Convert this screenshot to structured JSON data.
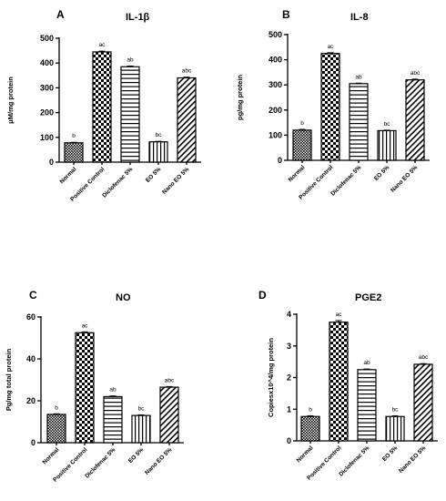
{
  "chart_data": [
    {
      "type": "bar",
      "panel": "A",
      "title": "IL-1β",
      "ylabel": "μM/mg protein",
      "xlabel": "",
      "ylim": [
        0,
        500
      ],
      "yticks": [
        0,
        100,
        200,
        300,
        400,
        500
      ],
      "categories": [
        "Normal",
        "Positive Control",
        "Diclofenac 5%",
        "EO 5%",
        "Nano EO 5%"
      ],
      "values": [
        78,
        445,
        385,
        82,
        340
      ],
      "errors": [
        2,
        3,
        3,
        2,
        3
      ],
      "labels": [
        "b",
        "ac",
        "ab",
        "bc",
        "abc"
      ],
      "patterns": [
        "dots",
        "checker",
        "hlines",
        "vlines",
        "diag"
      ]
    },
    {
      "type": "bar",
      "panel": "B",
      "title": "IL-8",
      "ylabel": "pg/mg protein",
      "xlabel": "",
      "ylim": [
        0,
        500
      ],
      "yticks": [
        0,
        100,
        200,
        300,
        400,
        500
      ],
      "categories": [
        "Normal",
        "Positive Control",
        "Diclofenac 5%",
        "EO 5%",
        "Nano EO 5%"
      ],
      "values": [
        120,
        425,
        305,
        118,
        320
      ],
      "errors": [
        3,
        3,
        2,
        2,
        3
      ],
      "labels": [
        "b",
        "ac",
        "ab",
        "bc",
        "abc"
      ],
      "patterns": [
        "dots",
        "checker",
        "hlines",
        "vlines",
        "diag"
      ]
    },
    {
      "type": "bar",
      "panel": "C",
      "title": "NO",
      "ylabel": "Pg/mg total protein",
      "xlabel": "",
      "ylim": [
        0,
        60
      ],
      "yticks": [
        0,
        20,
        40,
        60
      ],
      "categories": [
        "Normal",
        "Positive Control",
        "Diclofenac 5%",
        "EO 5%",
        "Nano EO 5%"
      ],
      "values": [
        13.5,
        52.5,
        22,
        13,
        26.5
      ],
      "errors": [
        0.3,
        0.4,
        0.3,
        0.3,
        0.3
      ],
      "labels": [
        "b",
        "ac",
        "ab",
        "bc",
        "abc"
      ],
      "patterns": [
        "dots",
        "checker",
        "hlines",
        "vlines",
        "diag"
      ]
    },
    {
      "type": "bar",
      "panel": "D",
      "title": "PGE2",
      "ylabel": "Copiesx10^4/mg protein",
      "xlabel": "",
      "ylim": [
        0,
        4
      ],
      "yticks": [
        0,
        1,
        2,
        3,
        4
      ],
      "categories": [
        "Normal",
        "Positive Control",
        "Diclofenac 5%",
        "EO 5%",
        "Nano EO 5%"
      ],
      "values": [
        0.77,
        3.75,
        2.25,
        0.77,
        2.42
      ],
      "errors": [
        0.02,
        0.05,
        0.02,
        0.02,
        0.02
      ],
      "labels": [
        "b",
        "ac",
        "ab",
        "bc",
        "abc"
      ],
      "patterns": [
        "dots",
        "checker",
        "hlines",
        "vlines",
        "diag"
      ]
    }
  ]
}
